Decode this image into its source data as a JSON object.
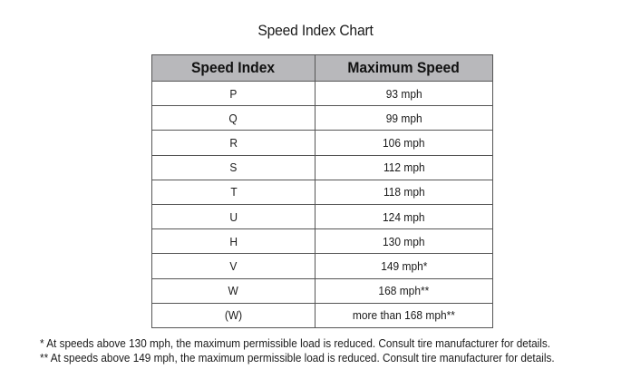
{
  "title": "Speed Index Chart",
  "table": {
    "headers": [
      "Speed Index",
      "Maximum Speed"
    ],
    "rows": [
      [
        "P",
        "93 mph"
      ],
      [
        "Q",
        "99 mph"
      ],
      [
        "R",
        "106 mph"
      ],
      [
        "S",
        "112 mph"
      ],
      [
        "T",
        "118 mph"
      ],
      [
        "U",
        "124 mph"
      ],
      [
        "H",
        "130 mph"
      ],
      [
        "V",
        "149 mph*"
      ],
      [
        "W",
        "168 mph**"
      ],
      [
        "(W)",
        "more than 168 mph**"
      ]
    ]
  },
  "footnotes": [
    "* At speeds above 130 mph, the maximum permissible load is reduced. Consult tire manufacturer for details.",
    "** At speeds above 149 mph, the maximum permissible load is reduced. Consult tire manufacturer for details."
  ],
  "colors": {
    "header_background": "#b8b8bb",
    "border": "#555555"
  }
}
